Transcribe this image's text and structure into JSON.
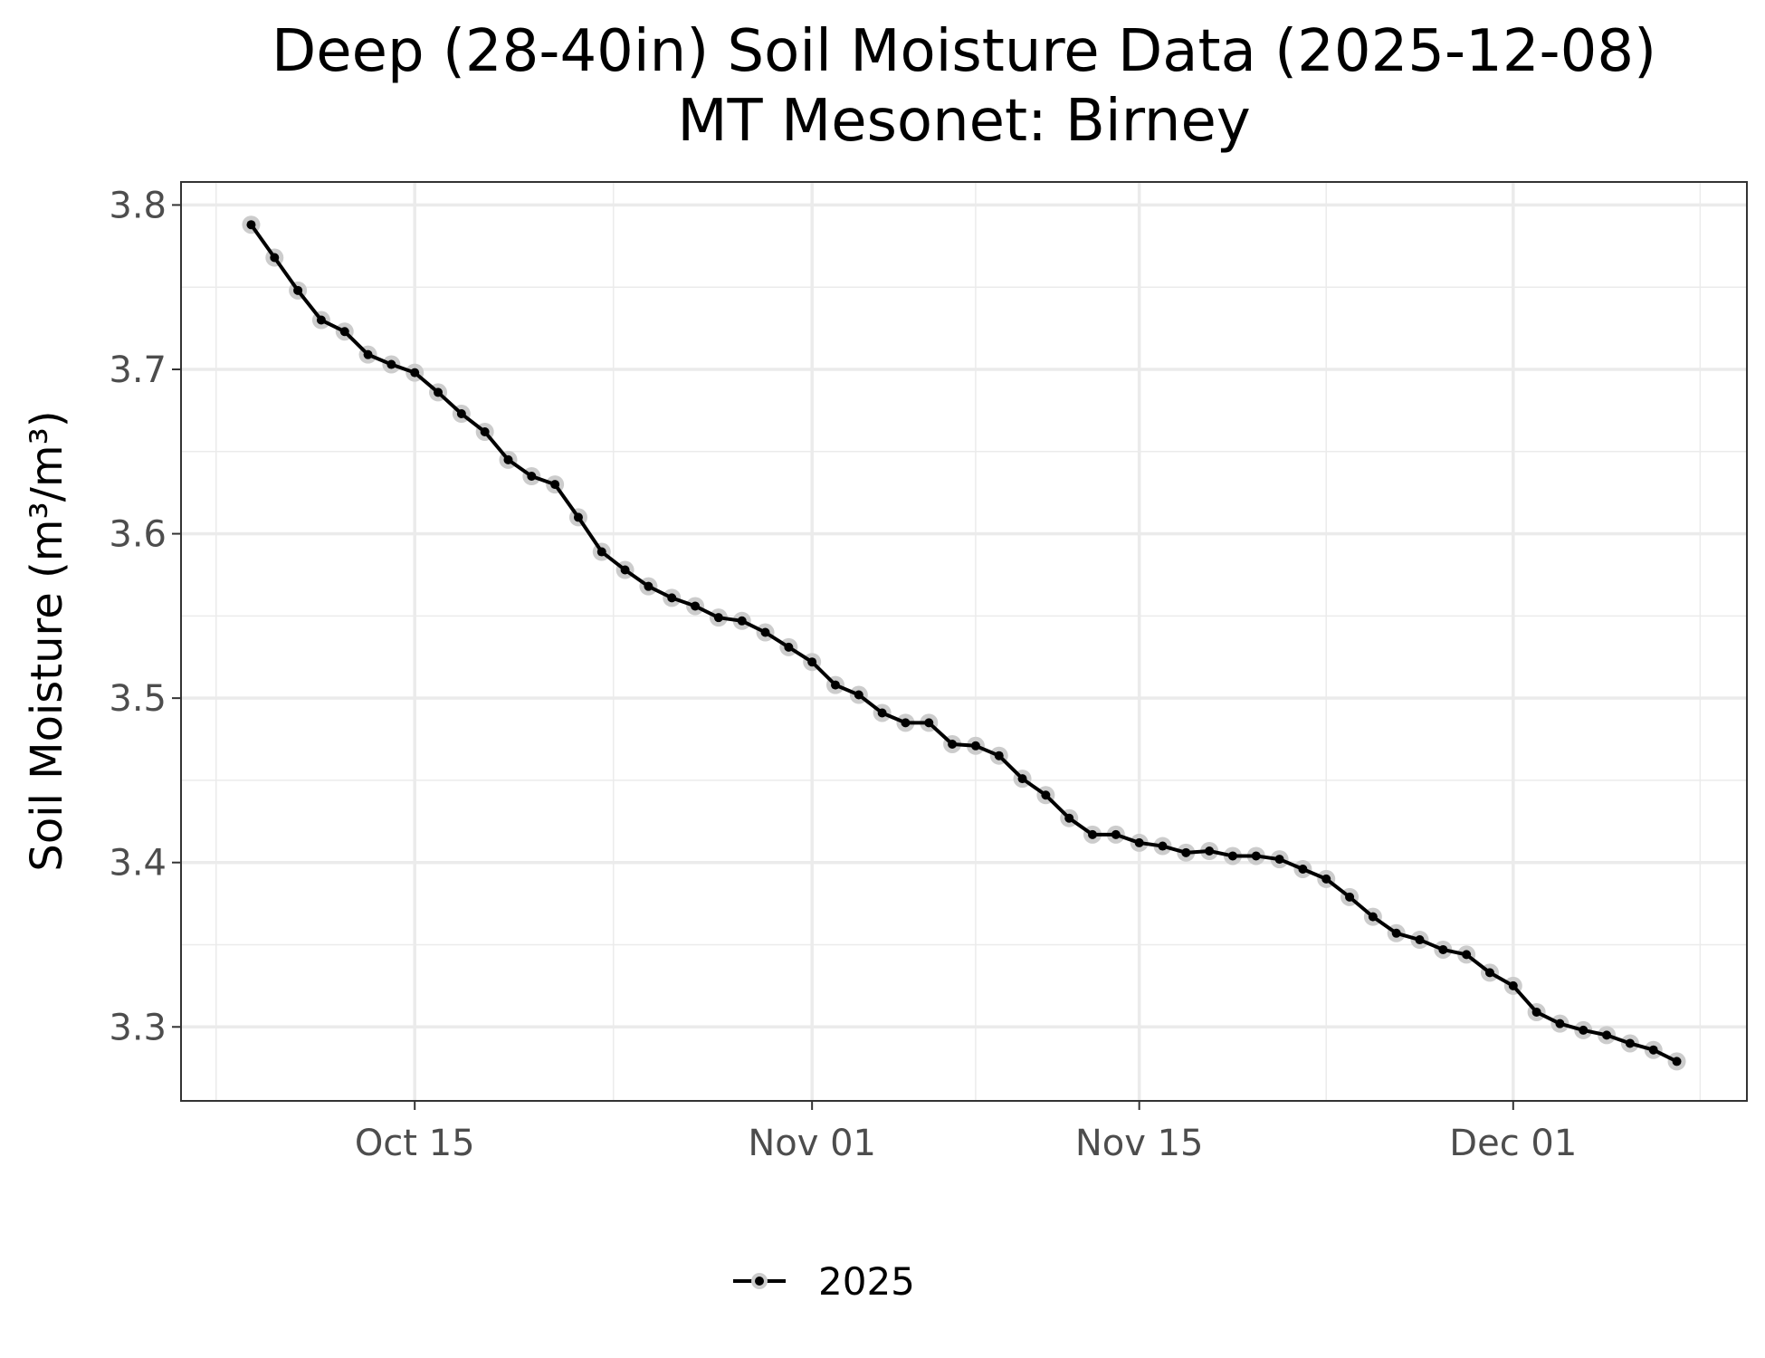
{
  "chart_data": {
    "type": "line",
    "title": "Deep (28-40in) Soil Moisture Data (2025-12-08)",
    "subtitle": "MT Mesonet: Birney",
    "xlabel": "",
    "ylabel": "Soil Moisture (m³/m³)",
    "x_tick_labels": [
      "Oct 15",
      "Nov 01",
      "Nov 15",
      "Dec 01"
    ],
    "x_tick_dates": [
      "2025-10-15",
      "2025-11-01",
      "2025-11-15",
      "2025-12-01"
    ],
    "y_tick_labels": [
      "3.3",
      "3.4",
      "3.5",
      "3.6",
      "3.7",
      "3.8"
    ],
    "y_ticks": [
      3.3,
      3.4,
      3.5,
      3.6,
      3.7,
      3.8
    ],
    "xlim": [
      "2025-10-05",
      "2025-12-11"
    ],
    "ylim": [
      3.255,
      3.814
    ],
    "grid": true,
    "legend_position": "bottom",
    "series": [
      {
        "name": "2025",
        "color": "#000000",
        "point_halo_color": "#cccccc",
        "x": [
          "2025-10-08",
          "2025-10-09",
          "2025-10-10",
          "2025-10-11",
          "2025-10-12",
          "2025-10-13",
          "2025-10-14",
          "2025-10-15",
          "2025-10-16",
          "2025-10-17",
          "2025-10-18",
          "2025-10-19",
          "2025-10-20",
          "2025-10-21",
          "2025-10-22",
          "2025-10-23",
          "2025-10-24",
          "2025-10-25",
          "2025-10-26",
          "2025-10-27",
          "2025-10-28",
          "2025-10-29",
          "2025-10-30",
          "2025-10-31",
          "2025-11-01",
          "2025-11-02",
          "2025-11-03",
          "2025-11-04",
          "2025-11-05",
          "2025-11-06",
          "2025-11-07",
          "2025-11-08",
          "2025-11-09",
          "2025-11-10",
          "2025-11-11",
          "2025-11-12",
          "2025-11-13",
          "2025-11-14",
          "2025-11-15",
          "2025-11-16",
          "2025-11-17",
          "2025-11-18",
          "2025-11-19",
          "2025-11-20",
          "2025-11-21",
          "2025-11-22",
          "2025-11-23",
          "2025-11-24",
          "2025-11-25",
          "2025-11-26",
          "2025-11-27",
          "2025-11-28",
          "2025-11-29",
          "2025-11-30",
          "2025-12-01",
          "2025-12-02",
          "2025-12-03",
          "2025-12-04",
          "2025-12-05",
          "2025-12-06",
          "2025-12-07",
          "2025-12-08"
        ],
        "values": [
          3.788,
          3.768,
          3.748,
          3.73,
          3.723,
          3.709,
          3.703,
          3.698,
          3.686,
          3.673,
          3.662,
          3.645,
          3.635,
          3.63,
          3.61,
          3.589,
          3.578,
          3.568,
          3.561,
          3.556,
          3.549,
          3.547,
          3.54,
          3.531,
          3.522,
          3.508,
          3.502,
          3.491,
          3.485,
          3.485,
          3.472,
          3.471,
          3.465,
          3.451,
          3.441,
          3.427,
          3.417,
          3.417,
          3.412,
          3.41,
          3.406,
          3.407,
          3.404,
          3.404,
          3.402,
          3.396,
          3.39,
          3.379,
          3.367,
          3.357,
          3.353,
          3.347,
          3.344,
          3.333,
          3.325,
          3.309,
          3.302,
          3.298,
          3.295,
          3.29,
          3.286,
          3.279
        ]
      }
    ]
  }
}
